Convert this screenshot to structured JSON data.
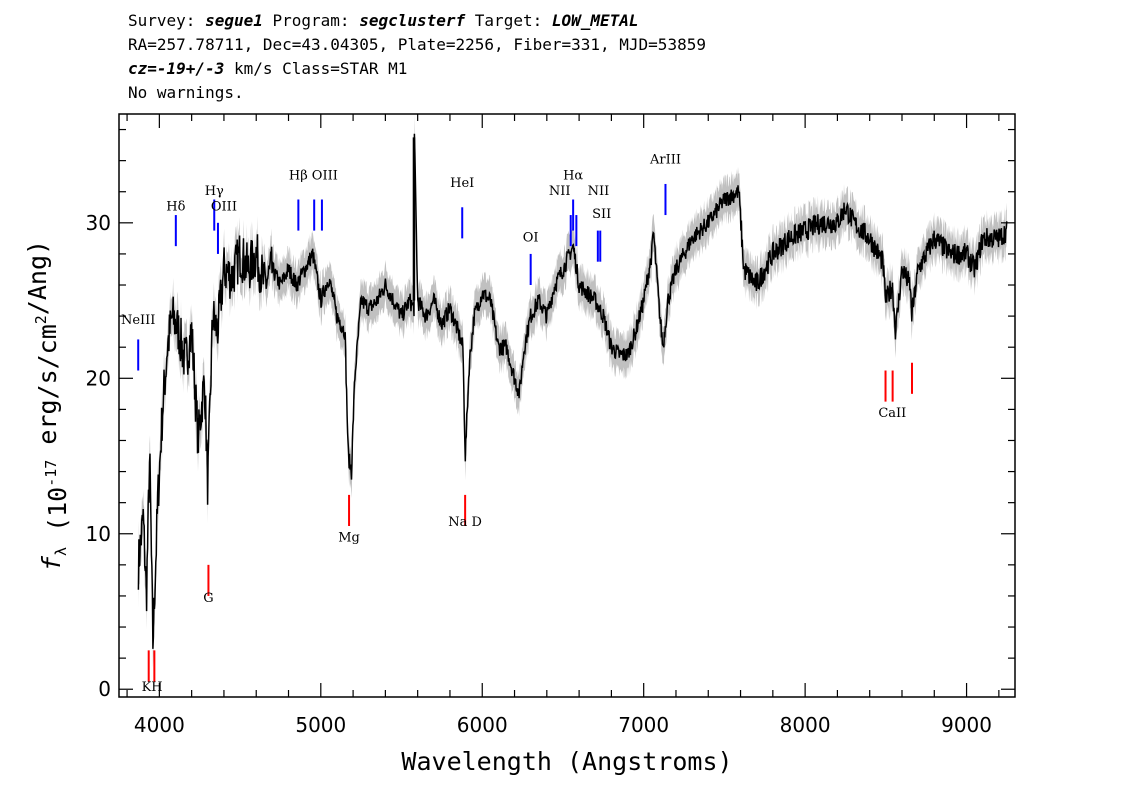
{
  "header": {
    "line1": {
      "p1": "Survey: ",
      "survey": "segue1",
      "p2": " Program: ",
      "program": "segclusterf",
      "p3": " Target: ",
      "target": "LOW_METAL"
    },
    "line2": "RA=257.78711, Dec=43.04305, Plate=2256, Fiber=331, MJD=53859",
    "line3": {
      "cz": "cz=-19+/-3",
      "rest": " km/s Class=STAR M1"
    },
    "line4": "No warnings."
  },
  "chart_data": {
    "type": "line",
    "xlabel": "Wavelength (Angstroms)",
    "ylabel": "f_λ (10^-17 erg/s/cm^2/Ang)",
    "xlim": [
      3750,
      9300
    ],
    "ylim": [
      -0.5,
      37
    ],
    "xticks": [
      4000,
      5000,
      6000,
      7000,
      8000,
      9000
    ],
    "yticks": [
      0,
      10,
      20,
      30
    ],
    "colors": {
      "flux": "#000000",
      "error_band": "#c0c0c0",
      "emission": "#0000ff",
      "absorption": "#ff0000"
    },
    "series": [
      {
        "x": [
          3870,
          3900,
          3920,
          3940,
          3960,
          3990,
          4020,
          4050,
          4080,
          4120,
          4160,
          4200,
          4240,
          4280,
          4300,
          4330,
          4360,
          4400,
          4450,
          4500,
          4550,
          4600,
          4650,
          4700,
          4750,
          4800,
          4850,
          4900,
          4950,
          5000,
          5050,
          5100,
          5150,
          5170,
          5190,
          5210,
          5250,
          5300,
          5350,
          5400,
          5450,
          5500,
          5550,
          5577,
          5580,
          5600,
          5650,
          5700,
          5750,
          5800,
          5850,
          5880,
          5895,
          5920,
          5950,
          6000,
          6050,
          6100,
          6150,
          6200,
          6230,
          6260,
          6300,
          6350,
          6400,
          6450,
          6500,
          6563,
          6600,
          6650,
          6700,
          6750,
          6800,
          6850,
          6900,
          6950,
          7000,
          7050,
          7060,
          7100,
          7120,
          7150,
          7200,
          7300,
          7400,
          7500,
          7590,
          7620,
          7700,
          7800,
          7900,
          8000,
          8100,
          8200,
          8250,
          8300,
          8400,
          8480,
          8500,
          8540,
          8560,
          8600,
          8650,
          8660,
          8700,
          8800,
          8900,
          9000,
          9050,
          9100,
          9200,
          9250
        ],
        "flux": [
          8,
          11,
          6,
          15,
          3,
          12,
          18,
          22,
          24,
          23,
          21,
          23,
          16,
          20,
          13,
          24,
          23,
          27,
          26.5,
          28,
          27,
          28,
          26,
          27,
          26,
          27,
          26,
          27,
          28,
          25,
          26.5,
          24,
          23,
          15,
          14,
          20,
          25,
          24.5,
          25,
          26,
          25,
          24,
          25,
          24.5,
          35.5,
          25,
          24,
          25,
          23.5,
          24.5,
          23,
          22,
          15,
          21,
          24,
          25.5,
          25,
          22,
          22,
          20,
          19,
          22,
          24,
          25,
          24,
          26,
          27,
          28.5,
          26,
          25.5,
          25,
          24,
          22,
          21.5,
          21.5,
          23,
          25,
          28,
          29.5,
          24,
          22,
          25,
          27,
          29,
          30,
          31.5,
          32,
          27,
          26,
          28,
          29,
          29.5,
          30,
          30,
          31,
          30,
          29,
          27.5,
          25,
          26,
          23,
          27,
          26,
          24,
          27,
          29,
          28,
          28,
          27,
          29,
          29,
          29.5
        ]
      }
    ],
    "emission_lines": [
      {
        "label": "NeIII",
        "wave": 3869,
        "y": 22.5
      },
      {
        "label": "Hδ",
        "wave": 4102,
        "y": 30.5
      },
      {
        "label": "Hγ",
        "wave": 4340,
        "y": 31.5
      },
      {
        "label": "OIII",
        "wave": 4363,
        "y": 30
      },
      {
        "label": "Hβ",
        "wave": 4861,
        "y": 31.5
      },
      {
        "label": "OIII",
        "wave": 4959,
        "y": 31.5
      },
      {
        "label": "OIII",
        "wave": 5007,
        "y": 31.5
      },
      {
        "label": "HeI",
        "wave": 5876,
        "y": 31
      },
      {
        "label": "OI",
        "wave": 6300,
        "y": 28
      },
      {
        "label": "NII",
        "wave": 6548,
        "y": 30.5
      },
      {
        "label": "Hα",
        "wave": 6563,
        "y": 31.5
      },
      {
        "label": "NII",
        "wave": 6583,
        "y": 30.5
      },
      {
        "label": "SII",
        "wave": 6716,
        "y": 29.5
      },
      {
        "label": "SII",
        "wave": 6731,
        "y": 29.5
      },
      {
        "label": "ArIII",
        "wave": 7135,
        "y": 32.5
      }
    ],
    "absorption_lines": [
      {
        "label": "K",
        "wave": 3934,
        "y": 2.5
      },
      {
        "label": "H",
        "wave": 3969,
        "y": 2.5
      },
      {
        "label": "G",
        "wave": 4304,
        "y": 8
      },
      {
        "label": "Mg",
        "wave": 5175,
        "y": 12.5
      },
      {
        "label": "Na D",
        "wave": 5894,
        "y": 12.5
      },
      {
        "label": "CaII",
        "wave": 8498,
        "y": 20.5
      },
      {
        "label": "CaII",
        "wave": 8542,
        "y": 20.5
      },
      {
        "label": "CaII",
        "wave": 8662,
        "y": 21
      }
    ],
    "line_labels": [
      {
        "label": "NeIII",
        "wave": 3869,
        "y": 23.5,
        "color": "blue"
      },
      {
        "label": "Hδ",
        "wave": 4102,
        "y": 30.8,
        "color": "blue"
      },
      {
        "label": "Hγ",
        "wave": 4340,
        "y": 31.8,
        "color": "blue"
      },
      {
        "label": "OIII",
        "wave": 4400,
        "y": 30.8,
        "color": "blue"
      },
      {
        "label": "Hβ",
        "wave": 4861,
        "y": 32.8,
        "color": "blue"
      },
      {
        "label": "OIII",
        "wave": 5025,
        "y": 32.8,
        "color": "blue"
      },
      {
        "label": "HeI",
        "wave": 5876,
        "y": 32.3,
        "color": "blue"
      },
      {
        "label": "OI",
        "wave": 6300,
        "y": 28.8,
        "color": "blue"
      },
      {
        "label": "NII",
        "wave": 6480,
        "y": 31.8,
        "color": "blue"
      },
      {
        "label": "Hα",
        "wave": 6563,
        "y": 32.8,
        "color": "blue"
      },
      {
        "label": "NII",
        "wave": 6720,
        "y": 31.8,
        "color": "blue"
      },
      {
        "label": "SII",
        "wave": 6740,
        "y": 30.3,
        "color": "blue"
      },
      {
        "label": "ArIII",
        "wave": 7135,
        "y": 33.8,
        "color": "blue"
      },
      {
        "label": "KH",
        "wave": 3955,
        "y": -0.1,
        "color": "red"
      },
      {
        "label": "G",
        "wave": 4304,
        "y": 5.6,
        "color": "red"
      },
      {
        "label": "Mg",
        "wave": 5175,
        "y": 9.5,
        "color": "red"
      },
      {
        "label": "Na D",
        "wave": 5894,
        "y": 10.5,
        "color": "red"
      },
      {
        "label": "CaII",
        "wave": 8540,
        "y": 17.5,
        "color": "red"
      }
    ]
  }
}
